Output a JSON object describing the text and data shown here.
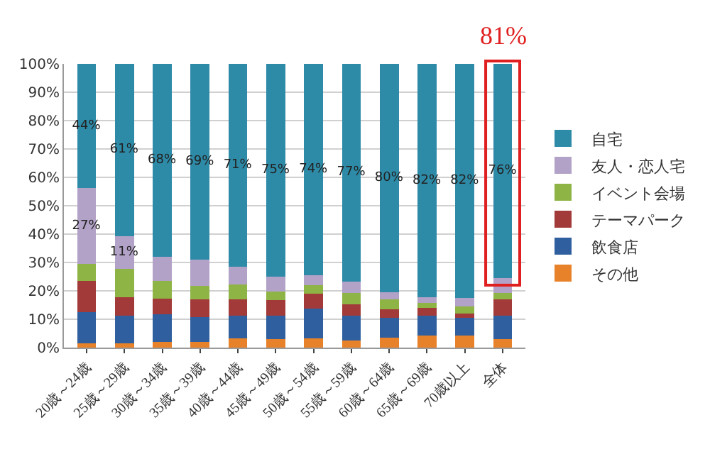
{
  "chart_data": {
    "type": "bar",
    "stacked": true,
    "categories": [
      "20歳～24歳",
      "25歳～29歳",
      "30歳～34歳",
      "35歳～39歳",
      "40歳～44歳",
      "45歳～49歳",
      "50歳～54歳",
      "55歳～59歳",
      "60歳～64歳",
      "65歳～69歳",
      "70歳以上",
      "全体"
    ],
    "series": [
      {
        "name": "その他",
        "color": "#e8822a",
        "values": [
          1.6,
          1.5,
          2,
          2,
          3.2,
          2.9,
          3.2,
          2.4,
          3.5,
          4.3,
          4.3,
          2.9
        ]
      },
      {
        "name": "飲食店",
        "color": "#2f5f9e",
        "values": [
          10.9,
          9.7,
          9.7,
          8.8,
          8,
          8.3,
          10.6,
          8.8,
          6.9,
          6.9,
          6.1,
          8.3
        ]
      },
      {
        "name": "テーマパーク",
        "color": "#a33a3a",
        "values": [
          10.9,
          6.5,
          5.6,
          6.2,
          5.8,
          5.5,
          5.2,
          4,
          3.2,
          2.8,
          1.6,
          5.7
        ]
      },
      {
        "name": "イベント会場",
        "color": "#8eb446",
        "values": [
          6,
          10.1,
          6.3,
          4.7,
          5.2,
          3,
          2.9,
          4.1,
          3.3,
          1.7,
          2.4,
          2.4
        ]
      },
      {
        "name": "友人・恋人宅",
        "color": "#b3a2c7",
        "values": [
          26.8,
          11.5,
          8.5,
          9.3,
          6.4,
          5.2,
          3.7,
          4,
          2.7,
          2,
          3.2,
          5.1
        ],
        "value_labels": [
          "27%",
          "11%",
          null,
          null,
          null,
          null,
          null,
          null,
          null,
          null,
          null,
          null
        ]
      },
      {
        "name": "自宅",
        "color": "#2e8ba8",
        "values": [
          43.8,
          60.7,
          67.9,
          69,
          71.4,
          75.1,
          74.4,
          76.7,
          80.4,
          82.3,
          82.4,
          75.6
        ],
        "value_labels": [
          "44%",
          "61%",
          "68%",
          "69%",
          "71%",
          "75%",
          "74%",
          "77%",
          "80%",
          "82%",
          "82%",
          "76%"
        ]
      }
    ],
    "ylim": [
      0,
      100
    ],
    "yticks": [
      {
        "value": 0,
        "label": "0%"
      },
      {
        "value": 10,
        "label": "10%"
      },
      {
        "value": 20,
        "label": "20%"
      },
      {
        "value": 30,
        "label": "30%"
      },
      {
        "value": 40,
        "label": "40%"
      },
      {
        "value": 50,
        "label": "50%"
      },
      {
        "value": 60,
        "label": "60%"
      },
      {
        "value": 70,
        "label": "70%"
      },
      {
        "value": 80,
        "label": "80%"
      },
      {
        "value": 90,
        "label": "90%"
      },
      {
        "value": 100,
        "label": "100%"
      }
    ],
    "grid": "y",
    "legend": "right",
    "annotations": [
      "81%"
    ]
  }
}
